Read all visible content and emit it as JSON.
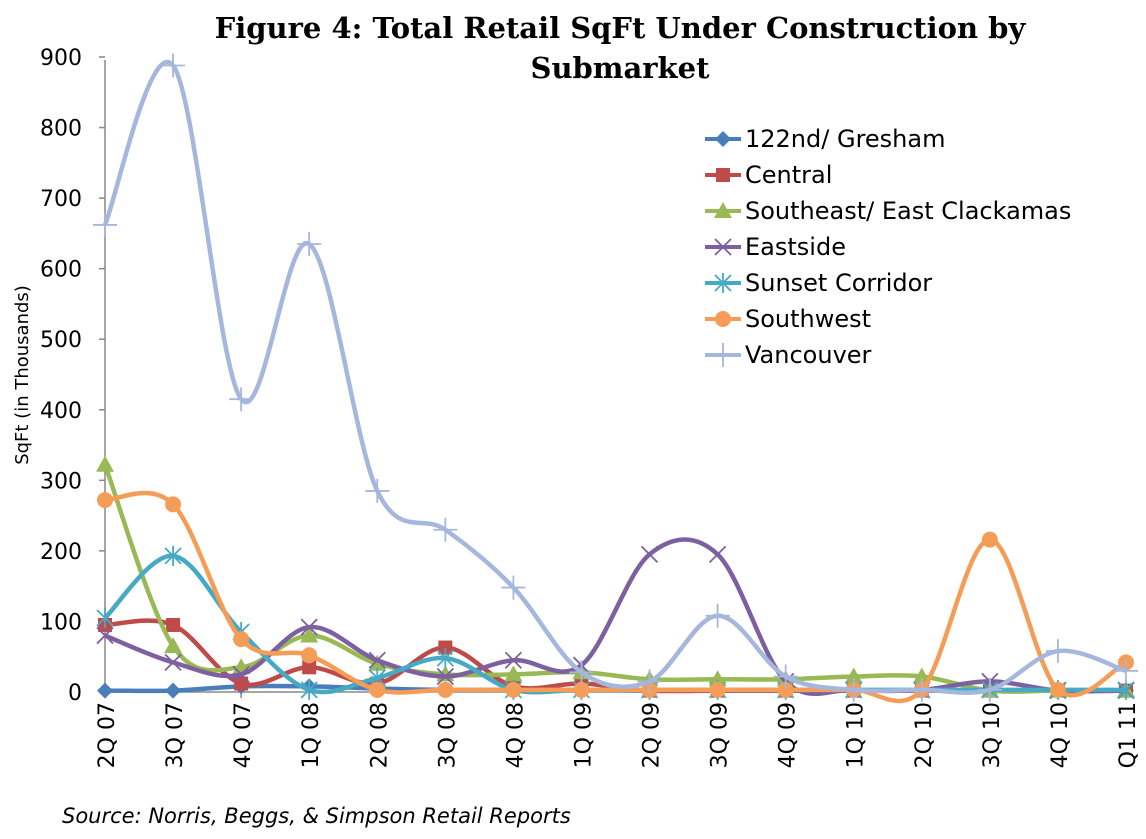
{
  "chart_data": {
    "type": "line",
    "title": "Figure 4: Total Retail SqFt Under Construction by Submarket",
    "y_label": "SqFt (in Thousands)",
    "source": "Source:  Norris, Beggs, & Simpson Retail Reports",
    "categories": [
      "2Q 07",
      "3Q 07",
      "4Q 07",
      "1Q 08",
      "2Q 08",
      "3Q 08",
      "4Q 08",
      "1Q 09",
      "2Q 09",
      "3Q 09",
      "4Q 09",
      "1Q 10",
      "2Q 10",
      "3Q 10",
      "4Q 10",
      "Q1 11"
    ],
    "ylim": [
      0,
      900
    ],
    "yticks": [
      0,
      100,
      200,
      300,
      400,
      500,
      600,
      700,
      800,
      900
    ],
    "grid": false,
    "smooth": true,
    "legend": "upper right",
    "series": [
      {
        "name": "122nd/ Gresham",
        "color": "#4a7ebb",
        "marker": "diamond",
        "values": [
          2,
          2,
          8,
          8,
          5,
          3,
          3,
          3,
          2,
          2,
          2,
          2,
          2,
          2,
          2,
          2
        ]
      },
      {
        "name": "Central",
        "color": "#be4b48",
        "marker": "square",
        "values": [
          95,
          95,
          12,
          35,
          12,
          63,
          8,
          12,
          2,
          2,
          2,
          2,
          2,
          2,
          2,
          2
        ]
      },
      {
        "name": "Southeast/ East Clackamas",
        "color": "#98b954",
        "marker": "triangle",
        "values": [
          322,
          65,
          35,
          80,
          40,
          25,
          25,
          28,
          18,
          18,
          18,
          22,
          22,
          2,
          2,
          2
        ]
      },
      {
        "name": "Eastside",
        "color": "#7d60a0",
        "marker": "x",
        "values": [
          80,
          42,
          25,
          92,
          45,
          22,
          45,
          38,
          195,
          195,
          15,
          3,
          3,
          15,
          2,
          2
        ]
      },
      {
        "name": "Sunset Corridor",
        "color": "#46aac5",
        "marker": "star",
        "values": [
          105,
          193,
          85,
          3,
          20,
          48,
          3,
          3,
          3,
          3,
          3,
          3,
          3,
          3,
          3,
          3
        ]
      },
      {
        "name": "Southwest",
        "color": "#f59d56",
        "marker": "circle",
        "values": [
          272,
          266,
          75,
          52,
          3,
          3,
          3,
          3,
          3,
          3,
          3,
          3,
          3,
          216,
          3,
          42
        ]
      },
      {
        "name": "Vancouver",
        "color": "#a5b7dd",
        "marker": "plus",
        "values": [
          662,
          888,
          415,
          635,
          285,
          230,
          148,
          28,
          15,
          108,
          22,
          3,
          3,
          3,
          58,
          30
        ]
      }
    ]
  }
}
